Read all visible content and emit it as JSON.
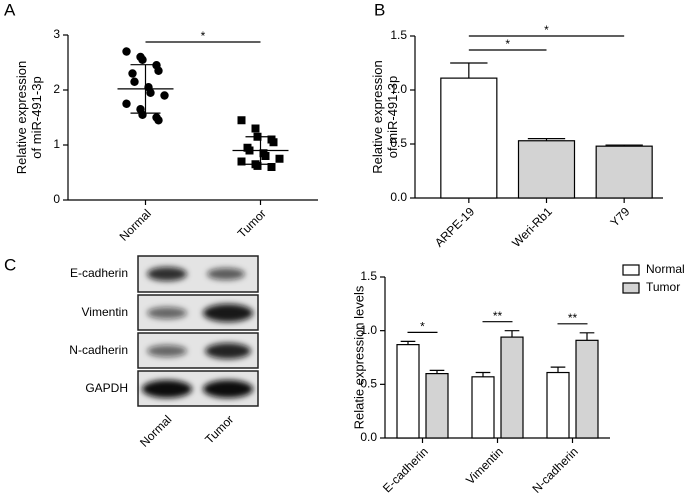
{
  "panel_labels": [
    "A",
    "B",
    "C"
  ],
  "blot": {
    "rows": [
      "E-cadherin",
      "Vimentin",
      "N-cadherin",
      "GAPDH"
    ],
    "columns": [
      "Normal",
      "Tumor"
    ]
  },
  "chart_data": [
    {
      "type": "dot",
      "ylabel": [
        "Relative expression",
        "of miR-491-3p"
      ],
      "categories": [
        "Normal",
        "Tumor"
      ],
      "markers": [
        "circle",
        "square"
      ],
      "points": [
        [
          2.7,
          2.6,
          2.55,
          2.45,
          2.35,
          2.3,
          2.15,
          2.05,
          1.95,
          1.9,
          1.75,
          1.65,
          1.55,
          1.5,
          1.45
        ],
        [
          1.45,
          1.3,
          1.15,
          1.1,
          1.05,
          0.95,
          0.9,
          0.85,
          0.8,
          0.75,
          0.7,
          0.65,
          0.62,
          0.6
        ]
      ],
      "means": [
        2.02,
        0.9
      ],
      "sd": [
        0.44,
        0.25
      ],
      "ylim": [
        0,
        3
      ],
      "yticks": [
        0,
        1,
        2,
        3
      ],
      "significance": [
        {
          "between": [
            "Normal",
            "Tumor"
          ],
          "label": "*"
        }
      ]
    },
    {
      "type": "bar",
      "ylabel": [
        "Relative expression",
        "of miR-491-3p"
      ],
      "categories": [
        "ARPE-19",
        "Weri-Rb1",
        "Y79"
      ],
      "values": [
        1.11,
        0.53,
        0.48
      ],
      "errors": [
        0.14,
        0.02,
        0.01
      ],
      "colors": [
        "#ffffff",
        "#d3d3d3",
        "#d3d3d3"
      ],
      "ylim": [
        0,
        1.5
      ],
      "yticks": [
        {
          "value": 0,
          "label": "0.0"
        },
        0.5,
        {
          "value": 1,
          "label": "1.0"
        },
        1.5
      ],
      "significance": [
        {
          "between": [
            "ARPE-19",
            "Weri-Rb1"
          ],
          "label": "*"
        },
        {
          "between": [
            "ARPE-19",
            "Y79"
          ],
          "label": "*"
        }
      ]
    },
    {
      "type": "bar",
      "ylabel": [
        "Relatie expression levels"
      ],
      "categories": [
        "E-cadherin",
        "Vimentin",
        "N-cadherin"
      ],
      "series": [
        {
          "name": "Normal",
          "color": "#ffffff",
          "values": [
            0.87,
            0.57,
            0.61
          ],
          "errors": [
            0.03,
            0.04,
            0.05
          ]
        },
        {
          "name": "Tumor",
          "color": "#d3d3d3",
          "values": [
            0.6,
            0.94,
            0.91
          ],
          "errors": [
            0.03,
            0.06,
            0.07
          ]
        }
      ],
      "ylim": [
        0,
        1.5
      ],
      "yticks": [
        {
          "value": 0,
          "label": "0.0"
        },
        0.5,
        {
          "value": 1,
          "label": "1.0"
        },
        1.5
      ],
      "legend": "top-right",
      "significance": [
        {
          "category": "E-cadherin",
          "label": "*"
        },
        {
          "category": "Vimentin",
          "label": "**"
        },
        {
          "category": "N-cadherin",
          "label": "**"
        }
      ]
    }
  ]
}
